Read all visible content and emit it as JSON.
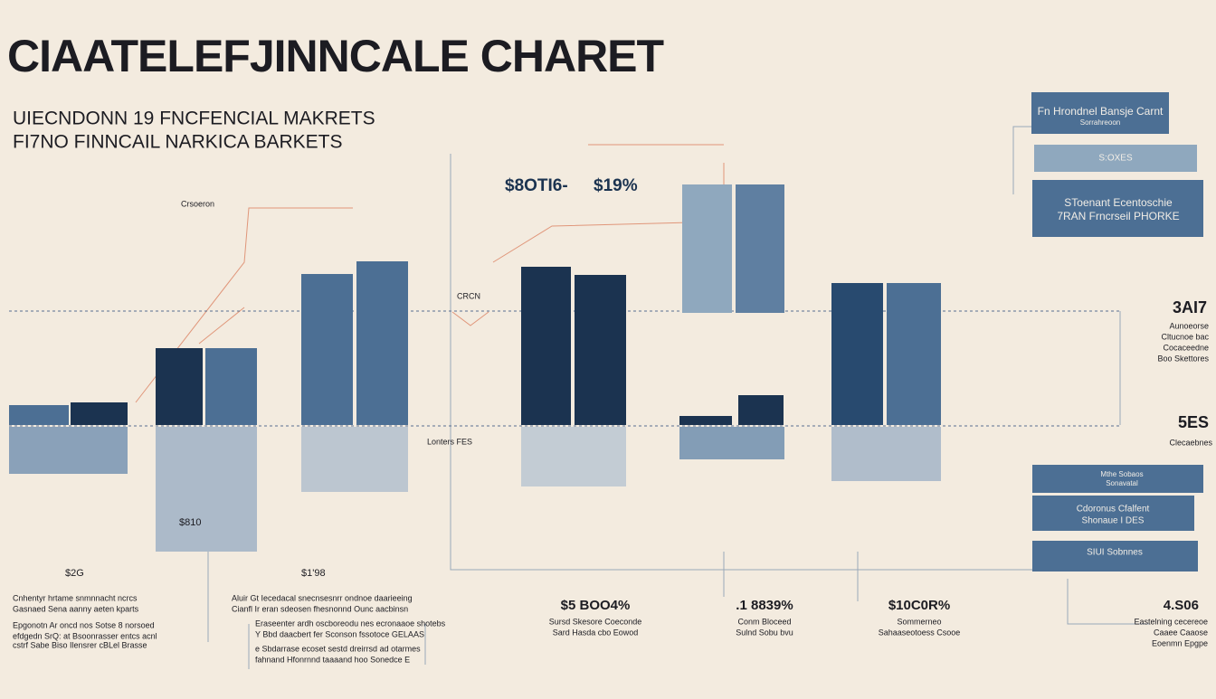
{
  "header": {
    "title": "CIAATELEFJINNCALE CHARET",
    "subtitle": [
      "UIECNDONN 19 FNCFENCIAL MAKRETS",
      "FI7NO FINNCAIL NARKICA BARKETS"
    ]
  },
  "annotations": {
    "top_value": "$8OTI6-",
    "top_percent": "$19%",
    "small_label": "Crsoeron",
    "mid_label": "CRCN",
    "base_label": "Lonters FES",
    "left_value": "$2G",
    "left_value_2": "$1'98",
    "bar_value": "$810"
  },
  "side_panel": {
    "box_1": [
      "Fn Hrondnel Bansje Carnt",
      "Sorrahreoon"
    ],
    "box_2": "S:OXES",
    "box_3": [
      "SToenant Ecentoschie",
      "7RAN Frncrseil PHORKE"
    ],
    "stat_1": {
      "value": "3AI7",
      "lines": [
        "Aunoeorse",
        "Cltucnoe bac",
        "Cocaceedne",
        "Boo Skettores"
      ]
    },
    "stat_2": {
      "value": "5ES",
      "lines": [
        "Clecaebnes"
      ]
    },
    "box_4": [
      "Mthe Sobaos",
      "Sonavatal"
    ],
    "box_5": [
      "Cdoronus Cfalfent",
      "Shonaue I DES"
    ],
    "box_6": "SIUI Sobnnes"
  },
  "footer": {
    "left_text": [
      "Cnhentyr hrtame snmnnacht ncrcs",
      "Gasnaed Sena aanny aeten kparts",
      "Epgonotn Ar oncd nos Sotse 8 norsoed",
      "efdgedn SrQ: at Bsoonrasser entcs acnl",
      "cstrf Sabe Biso Ilensrer cBLel Brasse"
    ],
    "mid_text": [
      "Aluir Gt Iecedacal snecnsesnrr ondnoe daarieeing",
      "Cianfl Ir eran sdeosen fhesnonnd Ounc aacbinsn",
      "Eraseenter ardh oscboreodu nes ecronaaoe shotebs",
      "Y Bbd daacbert fer Sconson fssotoce GELAAS",
      "e Sbdarrase ecoset sestd dreirrsd ad otarmes",
      "fahnand Hfonrnnd taaaand hoo Sonedce E"
    ],
    "stats": [
      {
        "value": "$5 BOO4%",
        "lines": [
          "Sursd Skesore Coeconde",
          "Sard Hasda cbo Eowod"
        ]
      },
      {
        "value": ".1 8839%",
        "lines": [
          "Conm Bloceed",
          "Sulnd Sobu bvu"
        ]
      },
      {
        "value": "$10C0R%",
        "lines": [
          "Sommerneo",
          "Sahaaseotoess Csooe"
        ]
      },
      {
        "value": "4.S06",
        "lines": [
          "Eastelning cecereoe",
          "Caaee Caaose",
          "Eoenmn Epgpe"
        ]
      }
    ]
  }
}
